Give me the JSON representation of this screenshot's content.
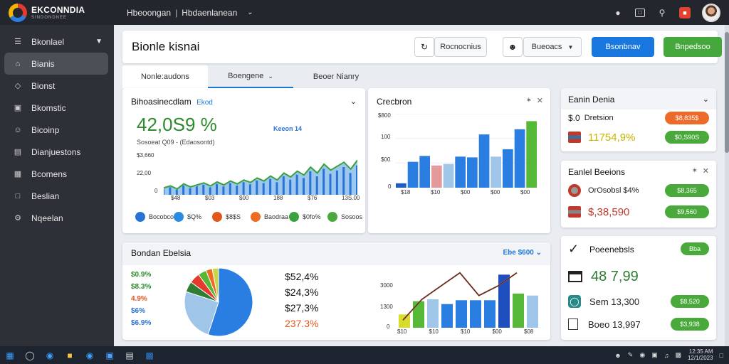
{
  "app": {
    "logo_name": "EKCONNDIA",
    "logo_sub": "SINDONDNEE",
    "breadcrumb": [
      "Hbeoongan",
      "Hbdaenlanean"
    ]
  },
  "sidebar": {
    "items": [
      {
        "label": "Bkonlael",
        "icon": "list-icon"
      },
      {
        "label": "Bianis",
        "icon": "home-icon"
      },
      {
        "label": "Bionst",
        "icon": "tag-icon"
      },
      {
        "label": "Bkomstic",
        "icon": "chart-icon"
      },
      {
        "label": "Bicoinp",
        "icon": "people-icon"
      },
      {
        "label": "Dianjuestons",
        "icon": "document-icon"
      },
      {
        "label": "Bcomens",
        "icon": "grid-icon"
      },
      {
        "label": "Beslian",
        "icon": "message-icon"
      },
      {
        "label": "Nqeelan",
        "icon": "gear-icon"
      }
    ]
  },
  "header": {
    "title": "Bionle kisnai",
    "btn1": "Rocnocnius",
    "btn2": "Bueoacs",
    "btn_blue": "Bsonbnav",
    "btn_green": "Bnpedsoo"
  },
  "tabs": [
    "Nonle:audons",
    "Boengene",
    "Beoer Nianry"
  ],
  "card1": {
    "title": "Bihoasinecdlam",
    "title_tag": "Ekod",
    "big_value": "42,0S9 %",
    "sub_value": "Sosoeat Q09 -  (Edaosontd)",
    "badge": "Keeon 14",
    "y_labels": [
      "$3,660",
      "22,00",
      "0"
    ],
    "x_labels": [
      "$48",
      "$03",
      "$00",
      "188",
      "$76",
      "13S.00"
    ],
    "series": [
      14,
      18,
      12,
      22,
      16,
      20,
      24,
      18,
      26,
      20,
      28,
      22,
      30,
      25,
      34,
      28,
      38,
      30,
      44,
      36,
      48,
      40,
      56,
      44,
      62,
      50,
      58,
      66,
      52,
      70
    ],
    "legend": [
      {
        "label": "Bocobco",
        "color": "#2a73d6"
      },
      {
        "label": "$Q%",
        "color": "#2a8be0"
      },
      {
        "label": "$8$S",
        "color": "#e2571e"
      },
      {
        "label": "Baodraa",
        "color": "#ef6b22"
      },
      {
        "label": "$0fo%",
        "color": "#3aa13f"
      },
      {
        "label": "Sosoos",
        "color": "#49a93b"
      }
    ]
  },
  "card2": {
    "title": "Crecbron",
    "y_labels": [
      "$800",
      "100",
      "$00",
      "0"
    ],
    "x_labels": [
      "$18",
      "$10",
      "$00",
      "$00",
      "$00"
    ],
    "chart_data": {
      "type": "bar",
      "values": [
        60,
        350,
        430,
        300,
        320,
        420,
        410,
        720,
        420,
        520,
        790,
        900
      ],
      "colors": [
        "#1f5fbf",
        "#2a7de1",
        "#2a7de1",
        "#e49a9a",
        "#9fc5e8",
        "#2a7de1",
        "#2a7de1",
        "#2a7de1",
        "#9fc5e8",
        "#2a7de1",
        "#2a7de1",
        "#55b837"
      ],
      "ylim": [
        0,
        1000
      ]
    }
  },
  "card3": {
    "title": "Bondan Ebelsia",
    "header_right": "Ebe   $600",
    "left_labels": [
      {
        "text": "$0.9%",
        "color": "#2a8d2a"
      },
      {
        "text": "$8.3%",
        "color": "#2a8d2a"
      },
      {
        "text": "4.9%",
        "color": "#e2571e"
      },
      {
        "text": "$6%",
        "color": "#2a73d6"
      },
      {
        "text": "$6.9%",
        "color": "#2a73d6"
      }
    ],
    "pie": {
      "type": "pie",
      "values": [
        55,
        25,
        5,
        5,
        4,
        3,
        3
      ]
    },
    "pct_values": [
      {
        "text": "$52,4%",
        "color": "#111"
      },
      {
        "text": "$24,3%",
        "color": "#111"
      },
      {
        "text": "$27,3%",
        "color": "#111"
      },
      {
        "text": "237.3%",
        "color": "#e2571e"
      }
    ],
    "y_labels": [
      "3000",
      "1300",
      "0"
    ],
    "x_labels": [
      "$10",
      "$10",
      "$10",
      "$00",
      "$08"
    ],
    "bars": {
      "type": "bar",
      "values": [
        700,
        1400,
        1500,
        1250,
        1450,
        1450,
        1450,
        2800,
        1800,
        1700
      ],
      "colors": [
        "#d6dd2a",
        "#55b837",
        "#9fc5e8",
        "#2a7de1",
        "#2a7de1",
        "#2a7de1",
        "#2a7de1",
        "#1f4fbf",
        "#55b837",
        "#9fc5e8"
      ],
      "line": [
        400,
        1500,
        2200,
        2900,
        1700,
        2200,
        2900
      ],
      "ylim": [
        0,
        3000
      ]
    }
  },
  "right1": {
    "title": "Eanin Denia",
    "rows": [
      {
        "label": "Dretsion",
        "pill": "$8,835$",
        "prefix": "$.0",
        "value_color": "#111"
      },
      {
        "label": "11754,9%",
        "pill": "$0,S90S",
        "prefix": "",
        "value_color": "#c8b400"
      }
    ]
  },
  "right2": {
    "title": "Eanlel Beeions",
    "rows": [
      {
        "label": "OrOsobsl  $4%",
        "pill": "$8,365",
        "value_color": "#111"
      },
      {
        "label": "$,38,590",
        "pill": "$9,560",
        "value_color": "#c0392b"
      }
    ]
  },
  "right3": {
    "title": "Poeenebsls",
    "pill_top": "Bba",
    "big": "48  7,99",
    "rows": [
      {
        "label": "Sem 13,300",
        "pill": "$8,520"
      },
      {
        "label": "Boeo 13,997",
        "pill": "$3,938"
      }
    ]
  },
  "taskbar": {
    "clock": "12:35 AM\n12/1/2023"
  }
}
